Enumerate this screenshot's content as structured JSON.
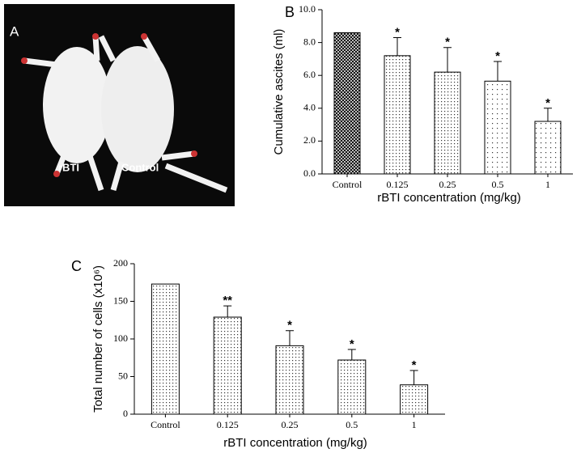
{
  "panel_a": {
    "label": "A",
    "captions": [
      "rBTI",
      "Control"
    ]
  },
  "chart_data": [
    {
      "type": "bar",
      "panel_label": "B",
      "x_label": "rBTI concentration (mg/kg)",
      "y_label": "Cumulative ascites (ml)",
      "categories": [
        "Control",
        "0.125",
        "0.25",
        "0.5",
        "1"
      ],
      "values": [
        8.6,
        7.2,
        6.2,
        5.65,
        3.2
      ],
      "errors": [
        null,
        1.1,
        1.5,
        1.2,
        0.8
      ],
      "annotations": [
        null,
        "*",
        "*",
        "*",
        "*"
      ],
      "bar_patterns": [
        "crosshatch",
        "dots",
        "dots",
        "dots-sparse",
        "dots-sparse"
      ],
      "ylim": [
        0,
        10
      ],
      "yticks": [
        {
          "value": 0,
          "label": "0.0"
        },
        {
          "value": 2,
          "label": "2.0"
        },
        {
          "value": 4,
          "label": "4.0"
        },
        {
          "value": 6,
          "label": "6.0"
        },
        {
          "value": 8,
          "label": "8.0"
        },
        {
          "value": 10,
          "label": "10.0"
        }
      ]
    },
    {
      "type": "bar",
      "panel_label": "C",
      "x_label": "rBTI concentration (mg/kg)",
      "y_label": "Total number of cells (x10⁶)",
      "categories": [
        "Control",
        "0.125",
        "0.25",
        "0.5",
        "1"
      ],
      "values": [
        173,
        129,
        91,
        72,
        39
      ],
      "errors": [
        null,
        15,
        20,
        14,
        19
      ],
      "annotations": [
        null,
        "**",
        "*",
        "*",
        "*"
      ],
      "bar_patterns": [
        "dots",
        "dots",
        "dots",
        "dots",
        "dots"
      ],
      "ylim": [
        0,
        200
      ],
      "yticks": [
        0,
        50,
        100,
        150,
        200
      ]
    }
  ]
}
